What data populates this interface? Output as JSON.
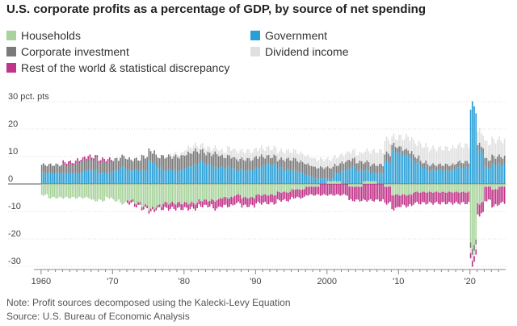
{
  "chart_data": {
    "type": "bar",
    "stacked": true,
    "title": "U.S. corporate profits as a percentage of GDP, by source of net spending",
    "y_unit_label": "30 pct. pts",
    "ylim": [
      -30,
      30
    ],
    "y_ticks": [
      30,
      20,
      10,
      0,
      -10,
      -20,
      -30
    ],
    "y_tick_labels": [
      "30 pct. pts",
      "20",
      "10",
      "0",
      "-10",
      "-20",
      "-30"
    ],
    "xlim": [
      1959,
      2025
    ],
    "x_ticks": [
      1960,
      1970,
      1980,
      1990,
      2000,
      2010,
      2020
    ],
    "x_tick_labels": [
      "1960",
      "'70",
      "'80",
      "'90",
      "2000",
      "'10",
      "'20"
    ],
    "grid": true,
    "legend_position": "top",
    "colors": {
      "Households": "#a8d39c",
      "Government": "#2a9fd6",
      "Corporate investment": "#7a7a7a",
      "Dividend income": "#e0e0e0",
      "Rest of the world & statistical discrepancy": "#c0358a"
    },
    "series": [
      {
        "name": "Households",
        "key": "households"
      },
      {
        "name": "Government",
        "key": "government"
      },
      {
        "name": "Corporate investment",
        "key": "corporate_investment"
      },
      {
        "name": "Dividend income",
        "key": "dividend_income"
      },
      {
        "name": "Rest of the world & statistical discrepancy",
        "key": "rest_of_world"
      }
    ],
    "x": [
      1960,
      1961,
      1962,
      1963,
      1964,
      1965,
      1966,
      1967,
      1968,
      1969,
      1970,
      1971,
      1972,
      1973,
      1974,
      1975,
      1976,
      1977,
      1978,
      1979,
      1980,
      1981,
      1982,
      1983,
      1984,
      1985,
      1986,
      1987,
      1988,
      1989,
      1990,
      1991,
      1992,
      1993,
      1994,
      1995,
      1996,
      1997,
      1998,
      1999,
      2000,
      2001,
      2002,
      2003,
      2004,
      2005,
      2006,
      2007,
      2008,
      2009,
      2010,
      2011,
      2012,
      2013,
      2014,
      2015,
      2016,
      2017,
      2018,
      2019,
      2020,
      2021,
      2022,
      2023,
      2024
    ],
    "households": [
      -4,
      -5,
      -5,
      -5,
      -5,
      -5,
      -5,
      -6,
      -6,
      -5,
      -6,
      -7,
      -6,
      -7,
      -8,
      -9,
      -8,
      -7,
      -7,
      -7,
      -7,
      -7,
      -6,
      -6,
      -6,
      -5,
      -5,
      -4,
      -5,
      -5,
      -4,
      -4,
      -4,
      -3,
      -3,
      -2,
      -2,
      -1,
      -1,
      0,
      1,
      1,
      0,
      -1,
      -1,
      1,
      1,
      0,
      -1,
      -4,
      -4,
      -4,
      -3,
      -3,
      -3,
      -3,
      -3,
      -3,
      -3,
      -3,
      -22,
      -7,
      -1,
      -2,
      -1
    ],
    "government": [
      4,
      4,
      4,
      4,
      4,
      4,
      5,
      5,
      4,
      4,
      5,
      6,
      5,
      5,
      5,
      8,
      6,
      5,
      5,
      5,
      6,
      7,
      8,
      7,
      6,
      6,
      6,
      5,
      5,
      5,
      6,
      7,
      7,
      6,
      5,
      5,
      4,
      3,
      2,
      2,
      1,
      3,
      5,
      6,
      5,
      4,
      3,
      4,
      8,
      12,
      11,
      10,
      8,
      6,
      5,
      5,
      5,
      5,
      6,
      6,
      28,
      12,
      6,
      7,
      7
    ],
    "corporate_investment": [
      3,
      3,
      3,
      3,
      3,
      4,
      4,
      4,
      4,
      4,
      4,
      4,
      4,
      4,
      5,
      4,
      4,
      5,
      5,
      5,
      5,
      5,
      4,
      4,
      5,
      4,
      4,
      4,
      4,
      4,
      4,
      3,
      3,
      3,
      4,
      4,
      4,
      4,
      4,
      4,
      4,
      3,
      3,
      3,
      3,
      3,
      3,
      3,
      3,
      2,
      2,
      2,
      2,
      2,
      2,
      2,
      2,
      2,
      2,
      2,
      -2,
      2,
      3,
      3,
      3
    ],
    "dividend_income": [
      0,
      0,
      0,
      0,
      0,
      0,
      0,
      0,
      0,
      0,
      0,
      0,
      0,
      0,
      0,
      0,
      0,
      0,
      1,
      1,
      2,
      2,
      2,
      2,
      2,
      2,
      3,
      3,
      3,
      3,
      3,
      3,
      3,
      3,
      3,
      3,
      3,
      3,
      3,
      3,
      3,
      3,
      3,
      3,
      3,
      4,
      5,
      5,
      5,
      3,
      4,
      5,
      5,
      6,
      6,
      6,
      6,
      6,
      6,
      6,
      -2,
      5,
      6,
      6,
      6
    ],
    "rest_of_world": [
      0,
      0,
      0,
      1,
      1,
      1,
      1,
      1,
      1,
      1,
      0,
      0,
      -1,
      -1,
      -1,
      -1,
      -1,
      -2,
      -2,
      -2,
      -2,
      -2,
      -2,
      -2,
      -3,
      -3,
      -3,
      -3,
      -3,
      -3,
      -3,
      -3,
      -3,
      -3,
      -3,
      -3,
      -3,
      -3,
      -3,
      -4,
      -4,
      -4,
      -4,
      -5,
      -5,
      -6,
      -6,
      -6,
      -6,
      -5,
      -4,
      -4,
      -4,
      -4,
      -4,
      -4,
      -4,
      -4,
      -4,
      -4,
      -2,
      -4,
      -5,
      -6,
      -6
    ]
  },
  "legend": [
    {
      "label": "Households",
      "color": "#a8d39c"
    },
    {
      "label": "Government",
      "color": "#2a9fd6"
    },
    {
      "label": "Corporate investment",
      "color": "#7a7a7a"
    },
    {
      "label": "Dividend income",
      "color": "#e0e0e0"
    },
    {
      "label": "Rest of the world & statistical discrepancy",
      "color": "#c0358a"
    }
  ],
  "note": "Note: Profit sources decomposed using the Kalecki-Levy Equation",
  "source": "Source: U.S. Bureau of Economic Analysis"
}
